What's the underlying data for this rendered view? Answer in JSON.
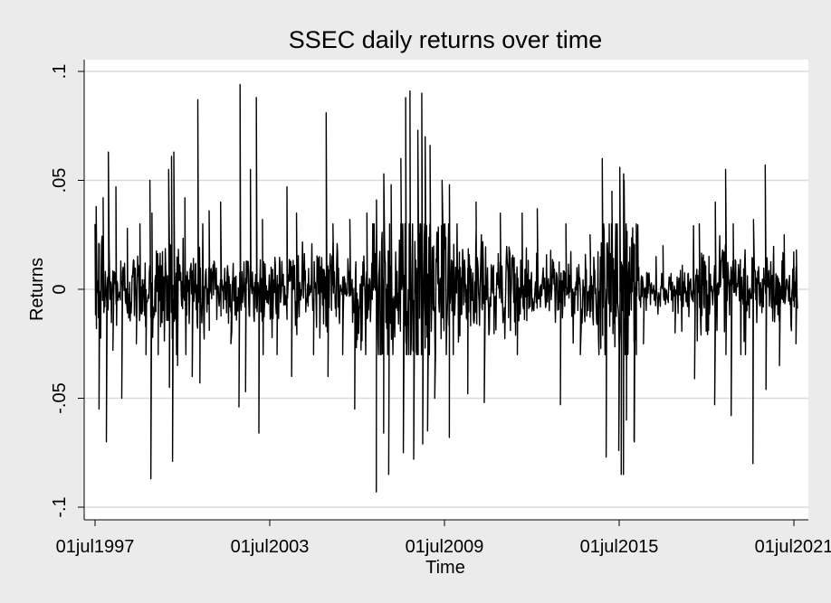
{
  "chart_data": {
    "type": "line",
    "title": "SSEC daily returns over time",
    "xlabel": "Time",
    "ylabel": "Returns",
    "x_range": [
      "1997-07-01",
      "2021-08-15"
    ],
    "ylim": [
      -0.105,
      0.105
    ],
    "grid": true,
    "legend": "none",
    "x_ticks": [
      {
        "label": "01jul1997",
        "date": "1997-07-01"
      },
      {
        "label": "01jul2003",
        "date": "2003-07-01"
      },
      {
        "label": "01jul2009",
        "date": "2009-07-01"
      },
      {
        "label": "01jul2015",
        "date": "2015-07-01"
      },
      {
        "label": "01jul2021",
        "date": "2021-07-01"
      }
    ],
    "y_ticks": [
      {
        "label": "-.1",
        "value": -0.1
      },
      {
        "label": "-.05",
        "value": -0.05
      },
      {
        "label": "0",
        "value": 0
      },
      {
        "label": ".05",
        "value": 0.05
      },
      {
        "label": ".1",
        "value": 0.1
      }
    ],
    "series": [
      {
        "color": "#000000",
        "points": [
          [
            "1997-07-15",
            0.038
          ],
          [
            "1997-08-20",
            -0.055
          ],
          [
            "1997-10-10",
            0.042
          ],
          [
            "1997-11-20",
            -0.07
          ],
          [
            "1997-12-15",
            0.063
          ],
          [
            "1998-02-10",
            -0.028
          ],
          [
            "1998-03-20",
            0.047
          ],
          [
            "1998-06-01",
            -0.05
          ],
          [
            "1998-08-10",
            0.028
          ],
          [
            "1998-12-01",
            -0.025
          ],
          [
            "1999-01-15",
            0.03
          ],
          [
            "1999-04-01",
            -0.03
          ],
          [
            "1999-05-20",
            0.05
          ],
          [
            "1999-06-01",
            -0.087
          ],
          [
            "1999-06-15",
            0.035
          ],
          [
            "1999-09-01",
            -0.03
          ],
          [
            "2000-01-10",
            0.055
          ],
          [
            "2000-01-20",
            -0.045
          ],
          [
            "2000-02-15",
            0.061
          ],
          [
            "2000-02-28",
            -0.079
          ],
          [
            "2000-03-15",
            0.063
          ],
          [
            "2000-05-01",
            -0.035
          ],
          [
            "2000-08-01",
            0.042
          ],
          [
            "2000-11-01",
            -0.04
          ],
          [
            "2001-01-10",
            0.087
          ],
          [
            "2001-02-05",
            -0.043
          ],
          [
            "2001-06-01",
            0.036
          ],
          [
            "2001-10-23",
            0.04
          ],
          [
            "2002-03-01",
            -0.025
          ],
          [
            "2002-06-10",
            -0.054
          ],
          [
            "2002-06-24",
            0.094
          ],
          [
            "2002-09-01",
            -0.047
          ],
          [
            "2002-11-01",
            0.055
          ],
          [
            "2003-01-14",
            0.088
          ],
          [
            "2003-02-15",
            -0.066
          ],
          [
            "2003-04-01",
            0.032
          ],
          [
            "2003-10-01",
            -0.03
          ],
          [
            "2004-02-02",
            0.047
          ],
          [
            "2004-04-01",
            -0.04
          ],
          [
            "2004-06-01",
            0.035
          ],
          [
            "2005-01-01",
            -0.03
          ],
          [
            "2005-06-08",
            0.081
          ],
          [
            "2005-07-01",
            -0.04
          ],
          [
            "2005-09-01",
            0.03
          ],
          [
            "2006-01-01",
            -0.03
          ],
          [
            "2006-04-01",
            0.032
          ],
          [
            "2006-06-01",
            -0.055
          ],
          [
            "2006-11-01",
            0.035
          ],
          [
            "2007-02-27",
            -0.093
          ],
          [
            "2007-03-01",
            0.041
          ],
          [
            "2007-05-30",
            -0.066
          ],
          [
            "2007-06-01",
            0.053
          ],
          [
            "2007-08-01",
            -0.085
          ],
          [
            "2007-09-01",
            0.048
          ],
          [
            "2008-01-01",
            0.06
          ],
          [
            "2008-02-01",
            -0.075
          ],
          [
            "2008-03-01",
            0.088
          ],
          [
            "2008-04-24",
            0.091
          ],
          [
            "2008-06-10",
            -0.078
          ],
          [
            "2008-08-01",
            0.073
          ],
          [
            "2008-09-19",
            0.09
          ],
          [
            "2008-10-01",
            -0.071
          ],
          [
            "2008-11-01",
            0.07
          ],
          [
            "2008-12-01",
            -0.065
          ],
          [
            "2009-01-01",
            0.066
          ],
          [
            "2009-03-01",
            -0.05
          ],
          [
            "2009-06-01",
            0.05
          ],
          [
            "2009-08-31",
            -0.068
          ],
          [
            "2009-09-01",
            0.048
          ],
          [
            "2010-04-19",
            -0.048
          ],
          [
            "2010-08-01",
            0.04
          ],
          [
            "2010-11-12",
            -0.052
          ],
          [
            "2011-06-01",
            0.035
          ],
          [
            "2012-01-01",
            -0.03
          ],
          [
            "2012-03-01",
            0.035
          ],
          [
            "2012-09-07",
            0.037
          ],
          [
            "2013-06-24",
            -0.053
          ],
          [
            "2013-09-01",
            0.03
          ],
          [
            "2014-03-01",
            -0.03
          ],
          [
            "2014-07-01",
            0.025
          ],
          [
            "2014-12-01",
            0.06
          ],
          [
            "2015-01-19",
            -0.077
          ],
          [
            "2015-04-01",
            0.045
          ],
          [
            "2015-06-26",
            -0.074
          ],
          [
            "2015-07-09",
            0.056
          ],
          [
            "2015-07-27",
            -0.085
          ],
          [
            "2015-08-24",
            -0.085
          ],
          [
            "2015-08-26",
            0.053
          ],
          [
            "2015-09-01",
            0.05
          ],
          [
            "2015-10-01",
            -0.06
          ],
          [
            "2016-01-04",
            -0.069
          ],
          [
            "2016-01-07",
            -0.07
          ],
          [
            "2016-02-01",
            0.03
          ],
          [
            "2016-05-01",
            -0.025
          ],
          [
            "2017-01-01",
            0.02
          ],
          [
            "2017-06-01",
            -0.02
          ],
          [
            "2018-02-01",
            -0.041
          ],
          [
            "2018-04-01",
            0.03
          ],
          [
            "2018-10-11",
            -0.053
          ],
          [
            "2018-10-19",
            0.04
          ],
          [
            "2019-02-25",
            0.055
          ],
          [
            "2019-03-01",
            -0.03
          ],
          [
            "2019-05-06",
            -0.058
          ],
          [
            "2019-06-01",
            0.03
          ],
          [
            "2019-11-01",
            -0.03
          ],
          [
            "2020-02-03",
            -0.08
          ],
          [
            "2020-02-10",
            0.032
          ],
          [
            "2020-07-06",
            0.057
          ],
          [
            "2020-07-16",
            -0.046
          ],
          [
            "2021-01-01",
            -0.035
          ],
          [
            "2021-03-01",
            0.025
          ],
          [
            "2021-07-27",
            -0.025
          ],
          [
            "2021-08-01",
            0.018
          ]
        ],
        "volatility_regimes": [
          {
            "start": "1997-07-01",
            "end": "1998-01-01",
            "level": 0.016
          },
          {
            "start": "1998-01-01",
            "end": "1999-05-01",
            "level": 0.009
          },
          {
            "start": "1999-05-01",
            "end": "2001-07-01",
            "level": 0.013
          },
          {
            "start": "2001-07-01",
            "end": "2006-06-01",
            "level": 0.009
          },
          {
            "start": "2006-06-01",
            "end": "2007-01-01",
            "level": 0.013
          },
          {
            "start": "2007-01-01",
            "end": "2009-09-01",
            "level": 0.022
          },
          {
            "start": "2009-09-01",
            "end": "2011-01-01",
            "level": 0.014
          },
          {
            "start": "2011-01-01",
            "end": "2014-10-01",
            "level": 0.009
          },
          {
            "start": "2014-10-01",
            "end": "2016-03-01",
            "level": 0.02
          },
          {
            "start": "2016-03-01",
            "end": "2018-01-01",
            "level": 0.005
          },
          {
            "start": "2018-01-01",
            "end": "2020-06-01",
            "level": 0.01
          },
          {
            "start": "2020-06-01",
            "end": "2021-08-01",
            "level": 0.009
          }
        ]
      }
    ]
  }
}
